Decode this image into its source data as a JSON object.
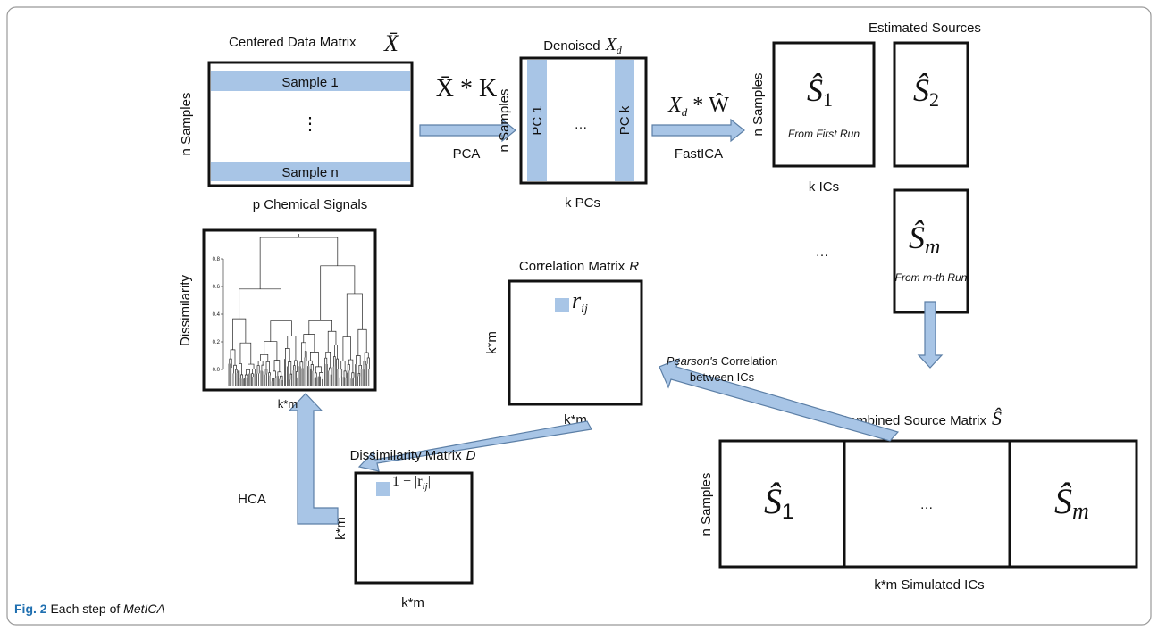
{
  "data_matrix": {
    "title": "Centered Data Matrix",
    "symbol": "X̄",
    "rows": [
      "Sample 1",
      "⋮",
      "Sample n"
    ],
    "row_axis": "n Samples",
    "col_axis": "p Chemical Signals"
  },
  "pca_step": {
    "formula": "X̄ * K",
    "method": "PCA"
  },
  "denoised": {
    "title": "Denoised",
    "symbol": "X",
    "subscript": "d",
    "columns": [
      "PC 1",
      "…",
      "PC k"
    ],
    "row_axis": "n Samples",
    "col_axis": "k PCs"
  },
  "ica_step": {
    "formula_symbol": "X",
    "formula_subscript": "d",
    "formula_rest": " * Ŵ",
    "method": "FastICA"
  },
  "estimated_sources": {
    "title": "Estimated Sources",
    "row_axis": "n Samples",
    "col_axis": "k ICs",
    "ellipsis": "…",
    "sources": [
      {
        "symbol": "Ŝ",
        "subscript": "1",
        "note": "From First Run"
      },
      {
        "symbol": "Ŝ",
        "subscript": "2"
      },
      {
        "symbol": "Ŝ",
        "subscript": "m",
        "note": "From m-th Run"
      }
    ]
  },
  "combined": {
    "title": "Combined Source Matrix",
    "symbol": "Ŝ",
    "row_axis": "n Samples",
    "col_axis": "k*m Simulated ICs",
    "blocks": [
      {
        "symbol": "Ŝ",
        "subscript": "1"
      },
      {
        "text": "…"
      },
      {
        "symbol": "Ŝ",
        "subscript": "m"
      }
    ]
  },
  "correlation_step": {
    "label_italic": "Pearson's",
    "label_rest": " Correlation",
    "label_line2": "between ICs"
  },
  "correlation": {
    "title": "Correlation Matrix",
    "symbol": "R",
    "element_symbol": "r",
    "element_subscript": "ij",
    "row_axis": "k*m",
    "col_axis": "k*m"
  },
  "dissimilarity": {
    "title": "Dissimilarity Matrix",
    "symbol": "D",
    "element_prefix": "1 − |r",
    "element_subscript": "ij",
    "element_suffix": "|",
    "row_axis": "k*m",
    "col_axis": "k*m"
  },
  "hca_step": {
    "method": "HCA"
  },
  "dendrogram": {
    "y_label": "Dissimilarity",
    "x_label": "k*m",
    "y_ticks": [
      "0.8",
      "0.6",
      "0.4",
      "0.2",
      "0.0"
    ]
  },
  "caption": {
    "label": "Fig. 2",
    "text": " Each step of ",
    "name": "MetICA"
  }
}
